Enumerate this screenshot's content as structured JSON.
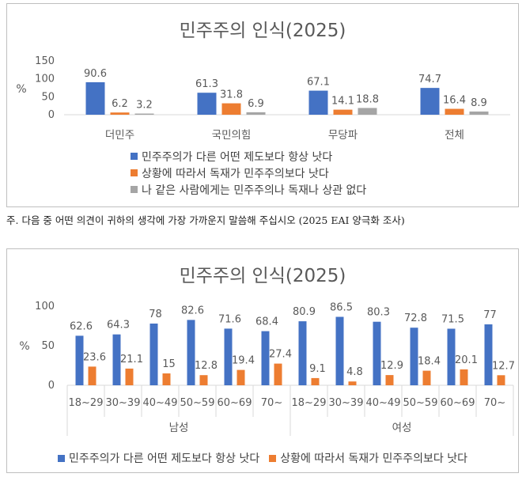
{
  "note": "주. 다음 중 어떤 의견이 귀하의 생각에 가장 가까운지 말씀해 주십시오 (2025 EAI 양극화 조사)",
  "colors": {
    "blue": "#4472c4",
    "orange": "#ed7d31",
    "gray": "#a5a5a5"
  },
  "chart_data": [
    {
      "type": "bar",
      "title": "민주주의 인식(2025)",
      "ylabel": "%",
      "ylim": [
        0,
        150
      ],
      "yticks": [
        "0",
        "50",
        "100",
        "150"
      ],
      "grid": false,
      "legend_position": "bottom",
      "categories": [
        "더민주",
        "국민의힘",
        "무당파",
        "전체"
      ],
      "series": [
        {
          "name": "민주주의가 다른 어떤 제도보다 항상 낫다",
          "color": "#4472c4",
          "values": [
            90.6,
            61.3,
            67.1,
            74.7
          ],
          "labels": [
            "90.6",
            "61.3",
            "67.1",
            "74.7"
          ]
        },
        {
          "name": "상황에 따라서 독재가 민주주의보다 낫다",
          "color": "#ed7d31",
          "values": [
            6.2,
            31.8,
            14.1,
            16.4
          ],
          "labels": [
            "6.2",
            "31.8",
            "14.1",
            "16.4"
          ]
        },
        {
          "name": "나 같은 사람에게는 민주주의나 독재나 상관 없다",
          "color": "#a5a5a5",
          "values": [
            3.2,
            6.9,
            18.8,
            8.9
          ],
          "labels": [
            "3.2",
            "6.9",
            "18.8",
            "8.9"
          ]
        }
      ]
    },
    {
      "type": "bar",
      "title": "민주주의 인식(2025)",
      "ylabel": "%",
      "ylim": [
        0,
        100
      ],
      "yticks": [
        "0",
        "50",
        "100"
      ],
      "grid": false,
      "legend_position": "bottom",
      "categories": [
        "18~29",
        "30~39",
        "40~49",
        "50~59",
        "60~69",
        "70~",
        "18~29",
        "30~39",
        "40~49",
        "50~59",
        "60~69",
        "70~"
      ],
      "groups": [
        "남성",
        "여성"
      ],
      "series": [
        {
          "name": "민주주의가 다른 어떤 제도보다 항상 낫다",
          "color": "#4472c4",
          "values": [
            62.6,
            64.3,
            78,
            82.6,
            71.6,
            68.4,
            80.9,
            86.5,
            80.3,
            72.8,
            71.5,
            77
          ],
          "labels": [
            "62.6",
            "64.3",
            "78",
            "82.6",
            "71.6",
            "68.4",
            "80.9",
            "86.5",
            "80.3",
            "72.8",
            "71.5",
            "77"
          ]
        },
        {
          "name": "상황에 따라서 독재가 민주주의보다 낫다",
          "color": "#ed7d31",
          "values": [
            23.6,
            21.1,
            15,
            12.8,
            19.4,
            27.4,
            9.1,
            4.8,
            12.9,
            18.4,
            20.1,
            12.7
          ],
          "labels": [
            "23.6",
            "21.1",
            "15",
            "12.8",
            "19.4",
            "27.4",
            "9.1",
            "4.8",
            "12.9",
            "18.4",
            "20.1",
            "12.7"
          ]
        }
      ]
    }
  ]
}
